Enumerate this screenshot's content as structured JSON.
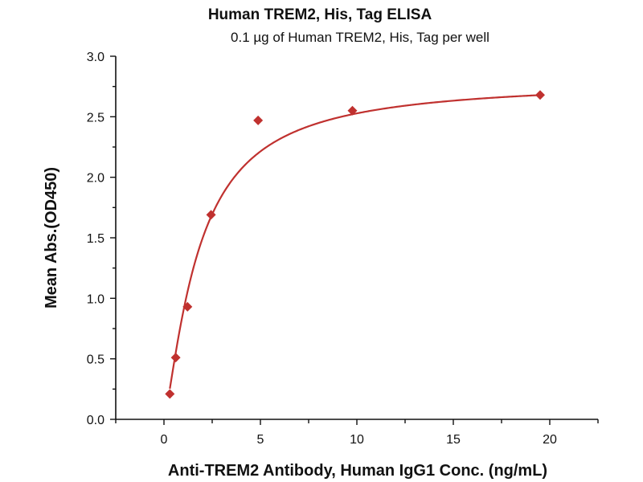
{
  "chart_data": {
    "type": "scatter",
    "title": "Human TREM2, His, Tag ELISA",
    "subtitle": "0.1 µg of Human TREM2, His, Tag per well",
    "xlabel": "Anti-TREM2 Antibody, Human IgG1 Conc. (ng/mL)",
    "ylabel": "Mean Abs.(OD450)",
    "xlim": [
      -2.5,
      22.5
    ],
    "ylim": [
      0,
      3.0
    ],
    "xticks": [
      0,
      5,
      10,
      15,
      20
    ],
    "xtick_labels": [
      "0",
      "5",
      "10",
      "15",
      "20"
    ],
    "yticks": [
      0,
      0.5,
      1.0,
      1.5,
      2.0,
      2.5,
      3.0
    ],
    "ytick_labels": [
      "0.0",
      "0.5",
      "1.0",
      "1.5",
      "2.0",
      "2.5",
      "3.0"
    ],
    "grid": false,
    "series": [
      {
        "name": "Human TREM2, His, Tag",
        "color": "#c0312f",
        "x": [
          0.305,
          0.61,
          1.22,
          2.44,
          4.88,
          9.77,
          19.5
        ],
        "y": [
          0.21,
          0.51,
          0.93,
          1.69,
          2.47,
          2.55,
          2.68
        ],
        "fit": {
          "model": "4PL",
          "bottom": 0,
          "top": 2.8,
          "ec50": 1.8,
          "hill": 1.3
        }
      }
    ]
  }
}
